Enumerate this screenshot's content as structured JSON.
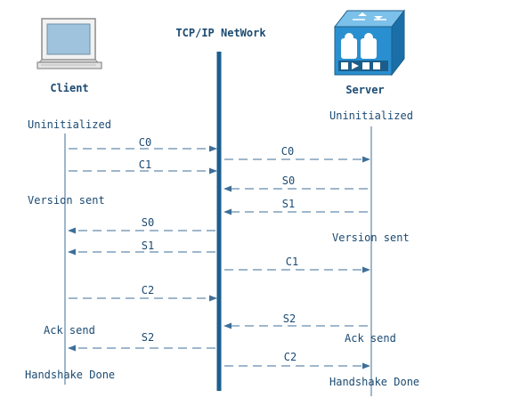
{
  "labels": {
    "network": "TCP/IP NetWork",
    "client": "Client",
    "server": "Server"
  },
  "states": {
    "client_uninitialized": "Uninitialized",
    "server_uninitialized": "Uninitialized",
    "client_version_sent": "Version sent",
    "server_version_sent": "Version sent",
    "client_ack_send": "Ack send",
    "server_ack_send": "Ack send",
    "client_handshake_done": "Handshake Done",
    "server_handshake_done": "Handshake Done"
  },
  "messages": [
    "C0",
    "C1",
    "C0",
    "S0",
    "S1",
    "S0",
    "S1",
    "C1",
    "C2",
    "S2",
    "S2",
    "C2"
  ],
  "icons": {
    "client": "computer-icon",
    "server": "server-icon"
  },
  "colors": {
    "text": "#1b4a72",
    "line": "#3e6f99",
    "network_bar": "#1d5e8f",
    "server_body": "#2a8fd0"
  }
}
